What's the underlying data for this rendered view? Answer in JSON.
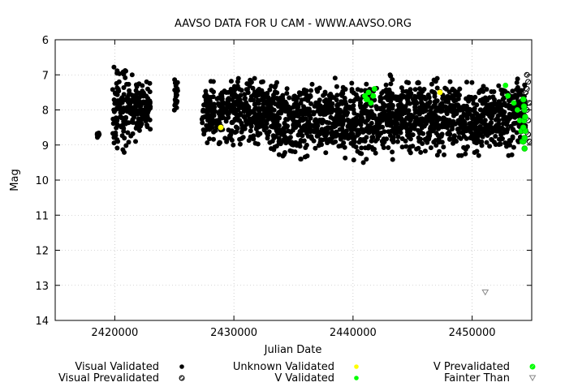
{
  "chart_data": {
    "type": "scatter",
    "title": "AAVSO DATA FOR U CAM - WWW.AAVSO.ORG",
    "xlabel": "Julian Date",
    "ylabel": "Mag",
    "xlim": [
      2415000,
      2455000
    ],
    "ylim": [
      6,
      14
    ],
    "y_inverted": true,
    "xticks": [
      2420000,
      2430000,
      2440000,
      2450000
    ],
    "xtick_labels": [
      "2420000",
      "2430000",
      "2440000",
      "2450000"
    ],
    "yticks": [
      6,
      7,
      8,
      9,
      10,
      11,
      12,
      13,
      14
    ],
    "ytick_labels": [
      "6",
      "7",
      "8",
      "9",
      "10",
      "11",
      "12",
      "13",
      "14"
    ],
    "grid": true,
    "legend_position": "bottom",
    "legend": [
      {
        "name": "Visual Validated",
        "marker": "filled-circle",
        "color": "#000000"
      },
      {
        "name": "Visual Prevalidated",
        "marker": "hatched-circle",
        "color": "#000000"
      },
      {
        "name": "Unknown Validated",
        "marker": "filled-circle",
        "color": "#ffff00"
      },
      {
        "name": "V Validated",
        "marker": "filled-circle",
        "color": "#00ff00"
      },
      {
        "name": "V Prevalidated",
        "marker": "hatched-circle",
        "color": "#00ff00"
      },
      {
        "name": "Fainter Than",
        "marker": "open-triangle-down",
        "color": "#888888"
      }
    ],
    "series": [
      {
        "name": "Visual Validated",
        "color": "#000000",
        "bands": [
          {
            "x": [
              2418500,
              2418700
            ],
            "y": [
              8.6,
              8.8
            ]
          },
          {
            "x": [
              2419800,
              2421200
            ],
            "y": [
              6.7,
              9.3
            ]
          },
          {
            "x": [
              2421200,
              2422300
            ],
            "y": [
              7.0,
              8.9
            ]
          },
          {
            "x": [
              2422300,
              2423000
            ],
            "y": [
              7.2,
              8.7
            ]
          },
          {
            "x": [
              2425000,
              2425300
            ],
            "y": [
              7.0,
              8.2
            ]
          },
          {
            "x": [
              2427300,
              2433000
            ],
            "y": [
              7.1,
              9.0
            ]
          },
          {
            "x": [
              2433000,
              2438000
            ],
            "y": [
              7.1,
              9.4
            ]
          },
          {
            "x": [
              2438000,
              2444000
            ],
            "y": [
              7.0,
              9.5
            ]
          },
          {
            "x": [
              2444000,
              2449000
            ],
            "y": [
              7.1,
              9.3
            ]
          },
          {
            "x": [
              2449000,
              2453500
            ],
            "y": [
              7.2,
              9.3
            ]
          },
          {
            "x": [
              2453500,
              2454500
            ],
            "y": [
              7.0,
              9.0
            ]
          }
        ]
      },
      {
        "name": "Visual Prevalidated",
        "color": "#000000",
        "points": [
          [
            2454600,
            7.0
          ],
          [
            2454700,
            7.2
          ],
          [
            2454500,
            7.5
          ],
          [
            2454800,
            7.8
          ],
          [
            2454600,
            8.0
          ],
          [
            2454700,
            8.3
          ],
          [
            2454500,
            8.6
          ],
          [
            2454800,
            8.9
          ],
          [
            2454600,
            7.4
          ],
          [
            2454700,
            8.7
          ]
        ]
      },
      {
        "name": "Unknown Validated",
        "color": "#ffff00",
        "points": [
          [
            2428900,
            8.5
          ],
          [
            2447300,
            7.5
          ]
        ]
      },
      {
        "name": "V Validated",
        "color": "#00ff00",
        "points": [
          [
            2441000,
            7.6
          ],
          [
            2441200,
            7.7
          ],
          [
            2441500,
            7.8
          ],
          [
            2441700,
            7.6
          ],
          [
            2441300,
            7.5
          ],
          [
            2441800,
            7.4
          ],
          [
            2441100,
            7.7
          ],
          [
            2452800,
            7.3
          ],
          [
            2453000,
            7.6
          ],
          [
            2453500,
            7.8
          ],
          [
            2453800,
            8.0
          ],
          [
            2454000,
            8.3
          ],
          [
            2454100,
            8.6
          ],
          [
            2454200,
            8.9
          ]
        ]
      },
      {
        "name": "V Prevalidated",
        "color": "#00ff00",
        "points": [
          [
            2454300,
            7.7
          ],
          [
            2454400,
            8.0
          ],
          [
            2454350,
            8.3
          ],
          [
            2454450,
            8.6
          ],
          [
            2454300,
            8.9
          ],
          [
            2454400,
            9.1
          ],
          [
            2454350,
            7.9
          ],
          [
            2454450,
            8.2
          ],
          [
            2454300,
            8.5
          ],
          [
            2454400,
            8.8
          ]
        ]
      },
      {
        "name": "Fainter Than",
        "color": "#888888",
        "points": [
          [
            2451100,
            13.2
          ]
        ]
      }
    ]
  }
}
